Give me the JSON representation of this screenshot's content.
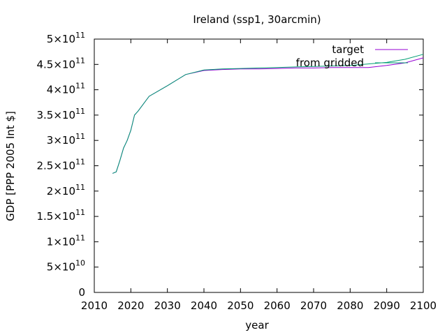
{
  "chart_data": {
    "type": "line",
    "title": "Ireland (ssp1, 30arcmin)",
    "xlabel": "year",
    "ylabel": "GDP [PPP 2005 Int $]",
    "xlim": [
      2010,
      2100
    ],
    "ylim": [
      0,
      500000000000
    ],
    "x_ticks": [
      "2010",
      "2020",
      "2030",
      "2040",
      "2050",
      "2060",
      "2070",
      "2080",
      "2090",
      "2100"
    ],
    "y_ticks": [
      {
        "value": 0,
        "mant": "0",
        "exp": ""
      },
      {
        "value": 50000000000,
        "mant": "5×10",
        "exp": "10"
      },
      {
        "value": 100000000000,
        "mant": "1×10",
        "exp": "11"
      },
      {
        "value": 150000000000,
        "mant": "1.5×10",
        "exp": "11"
      },
      {
        "value": 200000000000,
        "mant": "2×10",
        "exp": "11"
      },
      {
        "value": 250000000000,
        "mant": "2.5×10",
        "exp": "11"
      },
      {
        "value": 300000000000,
        "mant": "3×10",
        "exp": "11"
      },
      {
        "value": 350000000000,
        "mant": "3.5×10",
        "exp": "11"
      },
      {
        "value": 400000000000,
        "mant": "4×10",
        "exp": "11"
      },
      {
        "value": 450000000000,
        "mant": "4.5×10",
        "exp": "11"
      },
      {
        "value": 500000000000,
        "mant": "5×10",
        "exp": "11"
      }
    ],
    "legend_position": "top-right",
    "grid": false,
    "series": [
      {
        "name": "target",
        "color": "#9400d3",
        "x": [
          2015,
          2016,
          2017,
          2018,
          2019,
          2020,
          2021,
          2022,
          2025,
          2030,
          2035,
          2040,
          2045,
          2050,
          2055,
          2060,
          2065,
          2070,
          2075,
          2080,
          2085,
          2090,
          2095,
          2100
        ],
        "y": [
          235000000000.0,
          238000000000.0,
          260000000000.0,
          285000000000.0,
          300000000000.0,
          320000000000.0,
          350000000000.0,
          358000000000.0,
          387000000000.0,
          408000000000.0,
          430000000000.0,
          438000000000.0,
          440000000000.0,
          441000000000.0,
          441000000000.0,
          442000000000.0,
          443000000000.0,
          443000000000.0,
          444000000000.0,
          444000000000.0,
          444000000000.0,
          448000000000.0,
          453000000000.0,
          463000000000.0
        ]
      },
      {
        "name": "from gridded",
        "color": "#009e73",
        "x": [
          2015,
          2016,
          2017,
          2018,
          2019,
          2020,
          2021,
          2022,
          2025,
          2030,
          2035,
          2040,
          2045,
          2050,
          2055,
          2060,
          2065,
          2070,
          2075,
          2080,
          2085,
          2090,
          2095,
          2100
        ],
        "y": [
          235000000000.0,
          238000000000.0,
          260000000000.0,
          285000000000.0,
          300000000000.0,
          320000000000.0,
          350000000000.0,
          358000000000.0,
          387000000000.0,
          408000000000.0,
          430000000000.0,
          439000000000.0,
          441000000000.0,
          442000000000.0,
          443000000000.0,
          444000000000.0,
          445000000000.0,
          446000000000.0,
          447000000000.0,
          448000000000.0,
          451000000000.0,
          454000000000.0,
          460000000000.0,
          470000000000.0
        ]
      }
    ]
  }
}
